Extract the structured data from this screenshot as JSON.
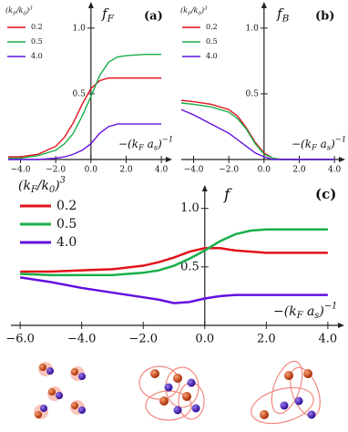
{
  "chart_data": [
    {
      "type": "line",
      "panel_label": "(a)",
      "y_label": "f_F",
      "x_label": "−(k_F a_s)^{−1}",
      "legend_title": "(k_F/k_0)^3",
      "x": [
        -4.7,
        -4,
        -3,
        -2,
        -1.5,
        -1,
        -0.5,
        0,
        0.5,
        1,
        1.5,
        2,
        3,
        4
      ],
      "series": [
        {
          "name": "0.2",
          "color": "#e3121b",
          "values": [
            0.02,
            0.02,
            0.04,
            0.1,
            0.17,
            0.28,
            0.42,
            0.54,
            0.6,
            0.62,
            0.62,
            0.62,
            0.62,
            0.62
          ]
        },
        {
          "name": "0.5",
          "color": "#1aae4a",
          "values": [
            0.01,
            0.01,
            0.03,
            0.07,
            0.12,
            0.2,
            0.33,
            0.48,
            0.64,
            0.74,
            0.78,
            0.79,
            0.8,
            0.8
          ]
        },
        {
          "name": "4.0",
          "color": "#6410e0",
          "values": [
            0,
            0,
            0,
            0.01,
            0.02,
            0.04,
            0.07,
            0.12,
            0.2,
            0.25,
            0.27,
            0.27,
            0.27,
            0.27
          ]
        }
      ],
      "xlim": [
        -4.7,
        4.2
      ],
      "ylim": [
        0,
        1.2
      ],
      "xticks": [
        {
          "value": -4,
          "label": "−4.0"
        },
        {
          "value": -2,
          "label": "−2.0"
        },
        {
          "value": 0,
          "label": "0.0"
        },
        {
          "value": 2,
          "label": "2.0"
        },
        {
          "value": 4,
          "label": "4.0"
        }
      ],
      "yticks": [
        0.5,
        {
          "value": 1,
          "label": "1.0"
        }
      ]
    },
    {
      "type": "line",
      "panel_label": "(b)",
      "y_label": "f_B",
      "x_label": "−(k_F a_s)^{−1}",
      "legend_title": "(k_F/k_0)^3",
      "x": [
        -4.7,
        -4,
        -3,
        -2,
        -1.5,
        -1,
        -0.5,
        0,
        0.5,
        1,
        1.5,
        2,
        3,
        4
      ],
      "series": [
        {
          "name": "0.2",
          "color": "#e3121b",
          "values": [
            0.45,
            0.44,
            0.42,
            0.38,
            0.33,
            0.24,
            0.13,
            0.05,
            0.01,
            0,
            0,
            0,
            0,
            0
          ]
        },
        {
          "name": "0.5",
          "color": "#1aae4a",
          "values": [
            0.43,
            0.42,
            0.4,
            0.36,
            0.31,
            0.23,
            0.12,
            0.04,
            0.01,
            0,
            0,
            0,
            0,
            0
          ]
        },
        {
          "name": "4.0",
          "color": "#6410e0",
          "values": [
            0.38,
            0.34,
            0.27,
            0.2,
            0.15,
            0.1,
            0.05,
            0.02,
            0,
            0,
            0,
            0,
            0,
            0
          ]
        }
      ],
      "xlim": [
        -4.7,
        4.2
      ],
      "ylim": [
        0,
        1.2
      ],
      "xticks": [
        {
          "value": -4,
          "label": "−4.0"
        },
        {
          "value": -2,
          "label": "−2.0"
        },
        {
          "value": 0,
          "label": "0.0"
        },
        {
          "value": 2,
          "label": "2.0"
        },
        {
          "value": 4,
          "label": "4.0"
        }
      ],
      "yticks": [
        0.5,
        {
          "value": 1,
          "label": "1.0"
        }
      ]
    },
    {
      "type": "line",
      "panel_label": "(c)",
      "y_label": "f",
      "x_label": "−(k_F a_s)^{−1}",
      "legend_title": "(k_F/k_0)^3",
      "x": [
        -6,
        -5,
        -4,
        -3,
        -2,
        -1.5,
        -1,
        -0.5,
        0,
        0.5,
        1,
        1.5,
        2,
        3,
        4
      ],
      "series": [
        {
          "name": "0.2",
          "color": "#e3121b",
          "values": [
            0.46,
            0.46,
            0.47,
            0.48,
            0.51,
            0.54,
            0.58,
            0.63,
            0.66,
            0.66,
            0.64,
            0.63,
            0.62,
            0.62,
            0.62
          ]
        },
        {
          "name": "0.5",
          "color": "#1aae4a",
          "values": [
            0.44,
            0.43,
            0.43,
            0.43,
            0.45,
            0.47,
            0.51,
            0.57,
            0.64,
            0.72,
            0.78,
            0.81,
            0.82,
            0.82,
            0.82
          ]
        },
        {
          "name": "4.0",
          "color": "#6410e0",
          "values": [
            0.41,
            0.37,
            0.32,
            0.28,
            0.24,
            0.22,
            0.19,
            0.2,
            0.23,
            0.25,
            0.26,
            0.26,
            0.26,
            0.26,
            0.26
          ]
        }
      ],
      "xlim": [
        -6.3,
        4.3
      ],
      "ylim": [
        0,
        1.2
      ],
      "xticks": [
        {
          "value": -6,
          "label": "−6.0"
        },
        {
          "value": -4,
          "label": "−4.0"
        },
        {
          "value": -2,
          "label": "−2.0"
        },
        {
          "value": 0,
          "label": "0.0"
        },
        {
          "value": 2,
          "label": "2.0"
        },
        {
          "value": 4,
          "label": "4.0"
        }
      ],
      "yticks": [
        0.5,
        {
          "value": 1,
          "label": "1.0"
        }
      ]
    }
  ]
}
